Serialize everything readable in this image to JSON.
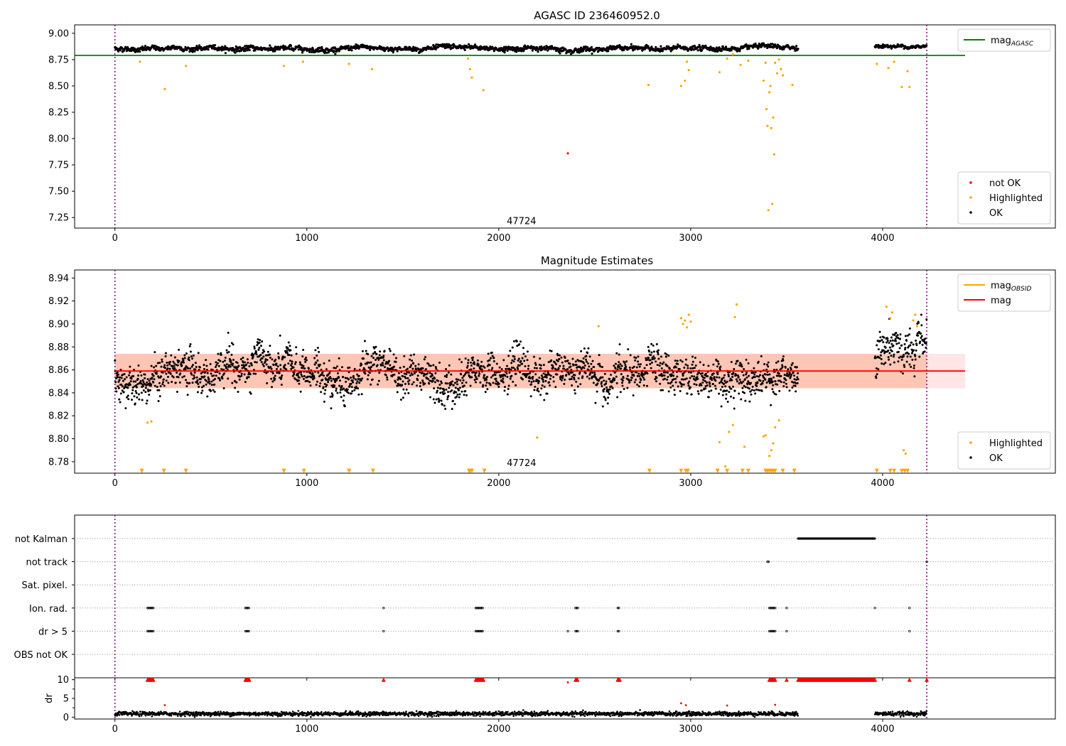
{
  "chart_data": [
    {
      "type": "scatter",
      "title": "AGASC ID 236460952.0",
      "xlim": [
        -210,
        4900
      ],
      "ylim": [
        7.15,
        9.08
      ],
      "xticks": [
        0,
        1000,
        2000,
        3000,
        4000
      ],
      "yticks": [
        7.25,
        7.5,
        7.75,
        8.0,
        8.25,
        8.5,
        8.75,
        9.0
      ],
      "ytick_labels": [
        "7.25",
        "7.50",
        "7.75",
        "8.00",
        "8.25",
        "8.50",
        "8.75",
        "9.00"
      ],
      "grid": false,
      "annotation": {
        "text": "47724",
        "x": 2000,
        "y": 7.2
      },
      "vlines": [
        0,
        4230
      ],
      "hline": {
        "name": "mag_AGASC",
        "y": 8.79,
        "x_range": [
          0,
          4430
        ],
        "color": "#008000"
      },
      "legend_upper": {
        "position": "top-right",
        "items": [
          {
            "label": "mag",
            "sub": "AGASC",
            "color": "#008000"
          }
        ]
      },
      "legend_lower": {
        "position": "bottom-right",
        "items": [
          {
            "label": "not OK",
            "color": "#ff0000"
          },
          {
            "label": "Highlighted",
            "color": "#ffa500"
          },
          {
            "label": "OK",
            "color": "#000000"
          }
        ]
      },
      "series": [
        {
          "name": "not OK",
          "color": "#ff0000",
          "x": [
            2360
          ],
          "y": [
            7.86
          ]
        },
        {
          "name": "Highlighted",
          "color": "#ffa500",
          "x": [
            130,
            260,
            370,
            880,
            980,
            1220,
            1340,
            1840,
            1850,
            1860,
            1920,
            2780,
            2950,
            2970,
            2980,
            2990,
            3150,
            3190,
            3220,
            3260,
            3300,
            3380,
            3390,
            3395,
            3400,
            3405,
            3410,
            3415,
            3420,
            3425,
            3430,
            3435,
            3440,
            3450,
            3460,
            3470,
            3480,
            3530,
            3970,
            4030,
            4060,
            4100,
            4130,
            4140
          ],
          "y": [
            8.73,
            8.47,
            8.69,
            8.69,
            8.73,
            8.71,
            8.66,
            8.76,
            8.66,
            8.58,
            8.46,
            8.51,
            8.5,
            8.55,
            8.73,
            8.65,
            8.63,
            8.76,
            8.8,
            8.7,
            8.74,
            8.55,
            8.72,
            8.28,
            8.12,
            7.32,
            8.44,
            8.5,
            8.1,
            7.38,
            8.2,
            7.85,
            8.72,
            8.62,
            8.75,
            8.66,
            8.6,
            8.51,
            8.71,
            8.67,
            8.73,
            8.49,
            8.64,
            8.49
          ]
        },
        {
          "name": "OK",
          "color": "#000000",
          "segments": [
            {
              "x": [
                0,
                3560
              ],
              "level": 8.855,
              "spread": 0.02
            },
            {
              "x": [
                3960,
                4230
              ],
              "level": 8.875,
              "spread": 0.015
            }
          ]
        }
      ]
    },
    {
      "type": "scatter",
      "title": "Magnitude Estimates",
      "xlim": [
        -210,
        4900
      ],
      "ylim": [
        8.77,
        8.947
      ],
      "xticks": [
        0,
        1000,
        2000,
        3000,
        4000
      ],
      "yticks": [
        8.78,
        8.8,
        8.82,
        8.84,
        8.86,
        8.88,
        8.9,
        8.92,
        8.94
      ],
      "ytick_labels": [
        "8.78",
        "8.80",
        "8.82",
        "8.84",
        "8.86",
        "8.88",
        "8.90",
        "8.92",
        "8.94"
      ],
      "grid": false,
      "annotation": {
        "text": "47724",
        "x": 2000,
        "y": 8.773
      },
      "vlines": [
        0,
        4230
      ],
      "hline": {
        "name": "mag",
        "y": 8.859,
        "x_range": [
          0,
          4430
        ],
        "color": "#ff0000"
      },
      "band": {
        "y": [
          8.844,
          8.874
        ],
        "x_range": [
          0,
          4430
        ],
        "color": "#ff9999"
      },
      "band_inner": {
        "y": [
          8.844,
          8.874
        ],
        "x_range": [
          0,
          4230
        ],
        "color": "#ffa07a"
      },
      "legend_upper": {
        "position": "top-right",
        "items": [
          {
            "label": "mag",
            "sub": "OBSID",
            "color": "#ffa500"
          },
          {
            "label": "mag",
            "sub": "",
            "color": "#ff0000"
          }
        ]
      },
      "legend_lower": {
        "position": "bottom-right",
        "items": [
          {
            "label": "Highlighted",
            "color": "#ffa500"
          },
          {
            "label": "OK",
            "color": "#000000"
          }
        ]
      },
      "series": [
        {
          "name": "Highlighted",
          "color": "#ffa500",
          "x": [
            170,
            190,
            2200,
            2520,
            2950,
            2960,
            2970,
            2980,
            2990,
            3000,
            3150,
            3180,
            3200,
            3220,
            3230,
            3240,
            3280,
            3380,
            3390,
            3410,
            3420,
            3430,
            3440,
            3460,
            4020,
            4040,
            4050,
            4110,
            4160,
            4170,
            4180,
            4120
          ],
          "y": [
            8.814,
            8.815,
            8.801,
            8.898,
            8.905,
            8.9,
            8.903,
            8.897,
            8.908,
            8.902,
            8.797,
            8.776,
            8.806,
            8.812,
            8.906,
            8.917,
            8.793,
            8.802,
            8.803,
            8.785,
            8.79,
            8.796,
            8.81,
            8.816,
            8.915,
            8.905,
            8.91,
            8.79,
            8.903,
            8.908,
            8.898,
            8.787
          ]
        },
        {
          "name": "Highlighted-lower-limit",
          "color": "#ffa500",
          "marker": "triangle-down",
          "x": [
            140,
            255,
            370,
            880,
            985,
            1220,
            1345,
            1845,
            1850,
            1860,
            1925,
            2785,
            2950,
            2975,
            2985,
            3140,
            3190,
            3270,
            3300,
            3390,
            3400,
            3410,
            3420,
            3430,
            3440,
            3480,
            3540,
            3970,
            4040,
            4060,
            4100,
            4115,
            4130
          ],
          "y": [
            8.772,
            8.772,
            8.772,
            8.772,
            8.772,
            8.772,
            8.772,
            8.772,
            8.772,
            8.772,
            8.772,
            8.772,
            8.772,
            8.772,
            8.772,
            8.772,
            8.772,
            8.772,
            8.772,
            8.772,
            8.772,
            8.772,
            8.772,
            8.772,
            8.772,
            8.772,
            8.772,
            8.772,
            8.772,
            8.772,
            8.772,
            8.772,
            8.772
          ]
        },
        {
          "name": "OK",
          "color": "#000000",
          "segments": [
            {
              "x": [
                0,
                3560
              ],
              "level": 8.856,
              "spread": 0.014
            },
            {
              "x": [
                3960,
                4230
              ],
              "level": 8.87,
              "spread": 0.015
            }
          ]
        }
      ]
    },
    {
      "type": "scatter",
      "title": "",
      "xlim": [
        -210,
        4900
      ],
      "xticks": [
        0,
        1000,
        2000,
        3000,
        4000
      ],
      "category_rows": [
        "not Kalman",
        "not track",
        "Sat. pixel.",
        "Ion. rad.",
        "dr > 5",
        "OBS not OK"
      ],
      "vlines": [
        0,
        4230
      ],
      "grid": true,
      "flags": {
        "not Kalman": [
          [
            3560,
            3960
          ]
        ],
        "not track": [
          [
            3400,
            3410
          ],
          [
            4230,
            4232
          ]
        ],
        "Sat. pixel.": [],
        "Ion. rad.": [
          [
            170,
            200
          ],
          [
            680,
            700
          ],
          [
            1400,
            1402
          ],
          [
            1880,
            1920
          ],
          [
            2400,
            2412
          ],
          [
            2620,
            2630
          ],
          [
            3410,
            3440
          ],
          [
            3500,
            3502
          ],
          [
            3960,
            3962
          ],
          [
            4140,
            4142
          ]
        ],
        "dr > 5": [
          [
            170,
            200
          ],
          [
            680,
            700
          ],
          [
            1400,
            1402
          ],
          [
            1880,
            1920
          ],
          [
            2360,
            2362
          ],
          [
            2400,
            2412
          ],
          [
            2620,
            2630
          ],
          [
            3410,
            3440
          ],
          [
            3500,
            3502
          ],
          [
            4140,
            4142
          ]
        ],
        "OBS not OK": []
      }
    },
    {
      "type": "scatter",
      "ylabel": "dr",
      "xlim": [
        -210,
        4900
      ],
      "ylim": [
        -0.5,
        10.5
      ],
      "yticks": [
        0,
        5,
        10
      ],
      "ytick_labels": [
        "0",
        "5",
        "10"
      ],
      "xticks": [
        0,
        1000,
        2000,
        3000,
        4000
      ],
      "xtick_labels": [
        "0",
        "1000",
        "2000",
        "3000",
        "4000"
      ],
      "vlines": [
        0,
        4230
      ],
      "series": [
        {
          "name": "dr OK",
          "color": "#000000",
          "segments": [
            {
              "x": [
                0,
                3560
              ],
              "level": 0.9,
              "spread": 0.5
            },
            {
              "x": [
                3960,
                4230
              ],
              "level": 0.9,
              "spread": 0.5
            }
          ]
        },
        {
          "name": "dr clipped",
          "color": "#ff0000",
          "marker": "triangle-up",
          "ranges": [
            [
              170,
              200
            ],
            [
              680,
              700
            ],
            [
              1400,
              1402
            ],
            [
              1880,
              1920
            ],
            [
              2400,
              2412
            ],
            [
              2620,
              2630
            ],
            [
              3410,
              3440
            ],
            [
              3500,
              3502
            ],
            [
              3560,
              3960
            ],
            [
              4140,
              4142
            ],
            [
              4230,
              4232
            ]
          ],
          "y": 10
        },
        {
          "name": "dr outliers",
          "color": "#ff0000",
          "x": [
            260,
            2360,
            2950,
            2975,
            3190,
            3440
          ],
          "y": [
            3.2,
            9.3,
            3.7,
            3.2,
            3.1,
            3.3
          ]
        }
      ]
    }
  ]
}
